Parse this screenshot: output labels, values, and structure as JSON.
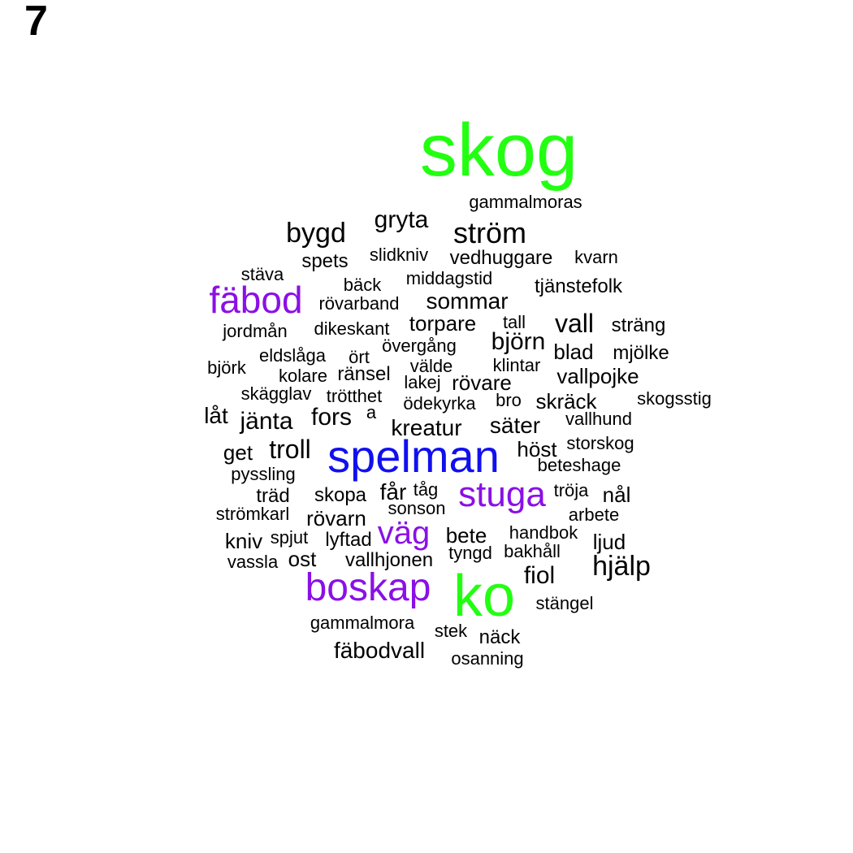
{
  "panel_label": "7",
  "colors": {
    "black": "#000000",
    "green": "#22ff11",
    "purple": "#8a10e6",
    "blue": "#1010ee"
  },
  "words": [
    {
      "text": "skog",
      "color": "green"
    },
    {
      "text": "gammalmoras",
      "color": "black"
    },
    {
      "text": "gryta",
      "color": "black"
    },
    {
      "text": "bygd",
      "color": "black"
    },
    {
      "text": "ström",
      "color": "black"
    },
    {
      "text": "slidkniv",
      "color": "black"
    },
    {
      "text": "spets",
      "color": "black"
    },
    {
      "text": "vedhuggare",
      "color": "black"
    },
    {
      "text": "kvarn",
      "color": "black"
    },
    {
      "text": "stäva",
      "color": "black"
    },
    {
      "text": "middagstid",
      "color": "black"
    },
    {
      "text": "bäck",
      "color": "black"
    },
    {
      "text": "tjänstefolk",
      "color": "black"
    },
    {
      "text": "fäbod",
      "color": "purple"
    },
    {
      "text": "rövarband",
      "color": "black"
    },
    {
      "text": "sommar",
      "color": "black"
    },
    {
      "text": "torpare",
      "color": "black"
    },
    {
      "text": "tall",
      "color": "black"
    },
    {
      "text": "vall",
      "color": "black"
    },
    {
      "text": "sträng",
      "color": "black"
    },
    {
      "text": "jordmån",
      "color": "black"
    },
    {
      "text": "dikeskant",
      "color": "black"
    },
    {
      "text": "övergång",
      "color": "black"
    },
    {
      "text": "björn",
      "color": "black"
    },
    {
      "text": "blad",
      "color": "black"
    },
    {
      "text": "mjölke",
      "color": "black"
    },
    {
      "text": "eldslåga",
      "color": "black"
    },
    {
      "text": "ört",
      "color": "black"
    },
    {
      "text": "välde",
      "color": "black"
    },
    {
      "text": "klintar",
      "color": "black"
    },
    {
      "text": "björk",
      "color": "black"
    },
    {
      "text": "kolare",
      "color": "black"
    },
    {
      "text": "ränsel",
      "color": "black"
    },
    {
      "text": "lakej",
      "color": "black"
    },
    {
      "text": "rövare",
      "color": "black"
    },
    {
      "text": "vallpojke",
      "color": "black"
    },
    {
      "text": "skägglav",
      "color": "black"
    },
    {
      "text": "trötthet",
      "color": "black"
    },
    {
      "text": "ödekyrka",
      "color": "black"
    },
    {
      "text": "bro",
      "color": "black"
    },
    {
      "text": "skräck",
      "color": "black"
    },
    {
      "text": "skogsstig",
      "color": "black"
    },
    {
      "text": "låt",
      "color": "black"
    },
    {
      "text": "jänta",
      "color": "black"
    },
    {
      "text": "fors",
      "color": "black"
    },
    {
      "text": "a",
      "color": "black"
    },
    {
      "text": "kreatur",
      "color": "black"
    },
    {
      "text": "säter",
      "color": "black"
    },
    {
      "text": "vallhund",
      "color": "black"
    },
    {
      "text": "get",
      "color": "black"
    },
    {
      "text": "troll",
      "color": "black"
    },
    {
      "text": "spelman",
      "color": "blue"
    },
    {
      "text": "höst",
      "color": "black"
    },
    {
      "text": "storskog",
      "color": "black"
    },
    {
      "text": "pyssling",
      "color": "black"
    },
    {
      "text": "beteshage",
      "color": "black"
    },
    {
      "text": "träd",
      "color": "black"
    },
    {
      "text": "skopa",
      "color": "black"
    },
    {
      "text": "får",
      "color": "black"
    },
    {
      "text": "tåg",
      "color": "black"
    },
    {
      "text": "stuga",
      "color": "purple"
    },
    {
      "text": "tröja",
      "color": "black"
    },
    {
      "text": "nål",
      "color": "black"
    },
    {
      "text": "strömkarl",
      "color": "black"
    },
    {
      "text": "sonson",
      "color": "black"
    },
    {
      "text": "rövarn",
      "color": "black"
    },
    {
      "text": "arbete",
      "color": "black"
    },
    {
      "text": "väg",
      "color": "purple"
    },
    {
      "text": "kniv",
      "color": "black"
    },
    {
      "text": "spjut",
      "color": "black"
    },
    {
      "text": "lyftad",
      "color": "black"
    },
    {
      "text": "bete",
      "color": "black"
    },
    {
      "text": "handbok",
      "color": "black"
    },
    {
      "text": "ljud",
      "color": "black"
    },
    {
      "text": "vassla",
      "color": "black"
    },
    {
      "text": "ost",
      "color": "black"
    },
    {
      "text": "vallhjonen",
      "color": "black"
    },
    {
      "text": "tyngd",
      "color": "black"
    },
    {
      "text": "bakhåll",
      "color": "black"
    },
    {
      "text": "hjälp",
      "color": "black"
    },
    {
      "text": "boskap",
      "color": "purple"
    },
    {
      "text": "ko",
      "color": "green"
    },
    {
      "text": "fiol",
      "color": "black"
    },
    {
      "text": "stängel",
      "color": "black"
    },
    {
      "text": "gammalmora",
      "color": "black"
    },
    {
      "text": "stek",
      "color": "black"
    },
    {
      "text": "näck",
      "color": "black"
    },
    {
      "text": "fäbodvall",
      "color": "black"
    },
    {
      "text": "osanning",
      "color": "black"
    }
  ]
}
